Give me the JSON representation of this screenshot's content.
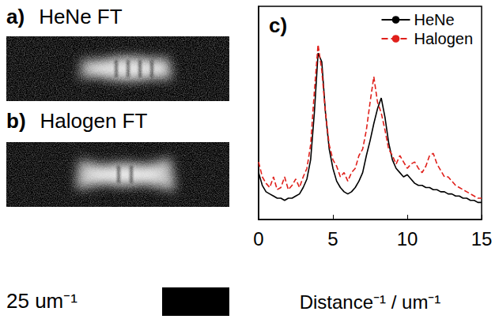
{
  "panels": [
    {
      "letter": "a)",
      "title": "HeNe FT"
    },
    {
      "letter": "b)",
      "title": "Halogen FT"
    }
  ],
  "scale_bar": {
    "label": "25 um⁻¹"
  },
  "chart_data": {
    "type": "line",
    "title": "c)",
    "x_label": "Distance⁻¹ / um⁻¹",
    "x": [
      0,
      0.25,
      0.5,
      0.75,
      1,
      1.25,
      1.5,
      1.75,
      2,
      2.25,
      2.5,
      2.75,
      3,
      3.25,
      3.5,
      3.75,
      4,
      4.25,
      4.5,
      4.75,
      5,
      5.25,
      5.5,
      5.75,
      6,
      6.25,
      6.5,
      6.75,
      7,
      7.25,
      7.5,
      7.75,
      8,
      8.25,
      8.5,
      8.75,
      9,
      9.25,
      9.5,
      9.75,
      10,
      10.25,
      10.5,
      10.75,
      11,
      11.25,
      11.5,
      11.75,
      12,
      12.25,
      12.5,
      12.75,
      13,
      13.25,
      13.5,
      13.75,
      14,
      14.25,
      14.5,
      14.75,
      15
    ],
    "series": [
      {
        "name": "HeNe",
        "color": "#000000",
        "line_style": "solid",
        "values": [
          0.22,
          0.16,
          0.13,
          0.12,
          0.11,
          0.1,
          0.1,
          0.09,
          0.1,
          0.1,
          0.11,
          0.12,
          0.15,
          0.19,
          0.28,
          0.5,
          0.78,
          0.74,
          0.5,
          0.33,
          0.24,
          0.18,
          0.15,
          0.13,
          0.12,
          0.13,
          0.15,
          0.18,
          0.22,
          0.3,
          0.37,
          0.45,
          0.52,
          0.57,
          0.48,
          0.36,
          0.28,
          0.24,
          0.22,
          0.2,
          0.21,
          0.19,
          0.17,
          0.16,
          0.16,
          0.15,
          0.15,
          0.14,
          0.14,
          0.13,
          0.13,
          0.12,
          0.12,
          0.11,
          0.11,
          0.1,
          0.1,
          0.09,
          0.09,
          0.08,
          0.08
        ]
      },
      {
        "name": "Halogen",
        "color": "#e0201b",
        "line_style": "dashed",
        "values": [
          0.27,
          0.2,
          0.17,
          0.15,
          0.2,
          0.14,
          0.15,
          0.2,
          0.14,
          0.16,
          0.19,
          0.15,
          0.2,
          0.24,
          0.35,
          0.6,
          0.82,
          0.7,
          0.5,
          0.35,
          0.28,
          0.25,
          0.2,
          0.22,
          0.18,
          0.22,
          0.24,
          0.3,
          0.33,
          0.42,
          0.55,
          0.67,
          0.55,
          0.5,
          0.42,
          0.33,
          0.3,
          0.26,
          0.3,
          0.27,
          0.24,
          0.26,
          0.27,
          0.24,
          0.22,
          0.25,
          0.3,
          0.31,
          0.26,
          0.23,
          0.2,
          0.2,
          0.18,
          0.16,
          0.15,
          0.14,
          0.13,
          0.12,
          0.11,
          0.1,
          0.1
        ]
      }
    ],
    "xlim": [
      0,
      15
    ],
    "xticks": [
      0,
      5,
      10,
      15
    ],
    "ylim": [
      0,
      1
    ],
    "yticks": [],
    "tick_labels": "x",
    "grid": false,
    "legend": "upper right"
  }
}
